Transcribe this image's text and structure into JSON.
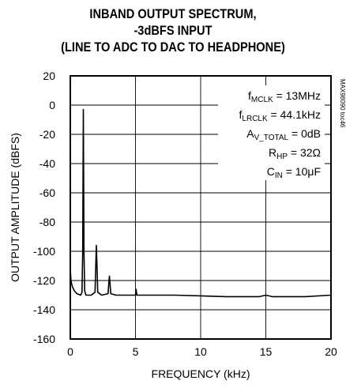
{
  "chart_data": {
    "type": "line",
    "title_lines": [
      "INBAND OUTPUT SPECTRUM,",
      "-3dBFS INPUT",
      "(LINE TO ADC TO DAC TO HEADPHONE)"
    ],
    "xlabel": "FREQUENCY (kHz)",
    "ylabel": "OUTPUT AMPLITUDE (dBFS)",
    "xlim": [
      0,
      20
    ],
    "ylim": [
      -160,
      20
    ],
    "x_ticks": [
      0,
      5,
      10,
      15,
      20
    ],
    "y_ticks": [
      20,
      0,
      -20,
      -40,
      -60,
      -80,
      -100,
      -120,
      -140,
      -160
    ],
    "grid": true,
    "legend": "none",
    "figure_code": "MAX98090 toc46",
    "annotations": [
      {
        "main": "f",
        "sub": "MCLK",
        "rest": " = 13MHz"
      },
      {
        "main": "f",
        "sub": "LRCLK",
        "rest": " = 44.1kHz"
      },
      {
        "main": "A",
        "sub": "V_TOTAL",
        "rest": " = 0dB"
      },
      {
        "main": "R",
        "sub": "HP",
        "rest": " = 32Ω"
      },
      {
        "main": "C",
        "sub": "IN",
        "rest": " = 10μF"
      }
    ],
    "series": [
      {
        "x": [
          0,
          0.05,
          0.15,
          0.3,
          0.5,
          0.8,
          0.9,
          0.95,
          1.0,
          1.05,
          1.1,
          1.2,
          1.6,
          1.9,
          1.95,
          2.0,
          2.05,
          2.1,
          2.4,
          2.9,
          2.95,
          3.0,
          3.05,
          3.1,
          3.5,
          5.0,
          5.05,
          5.1,
          8,
          12,
          14.5,
          15,
          15.5,
          18,
          20
        ],
        "y": [
          -112,
          -120,
          -124,
          -127,
          -129,
          -130,
          -128,
          -100,
          -3,
          -100,
          -127,
          -130,
          -130,
          -128,
          -110,
          -96,
          -110,
          -128,
          -130,
          -129,
          -122,
          -117,
          -122,
          -129,
          -130,
          -130,
          -126,
          -130,
          -130,
          -131,
          -131,
          -130,
          -131,
          -131,
          -130
        ]
      }
    ],
    "line_color": "#000000"
  }
}
